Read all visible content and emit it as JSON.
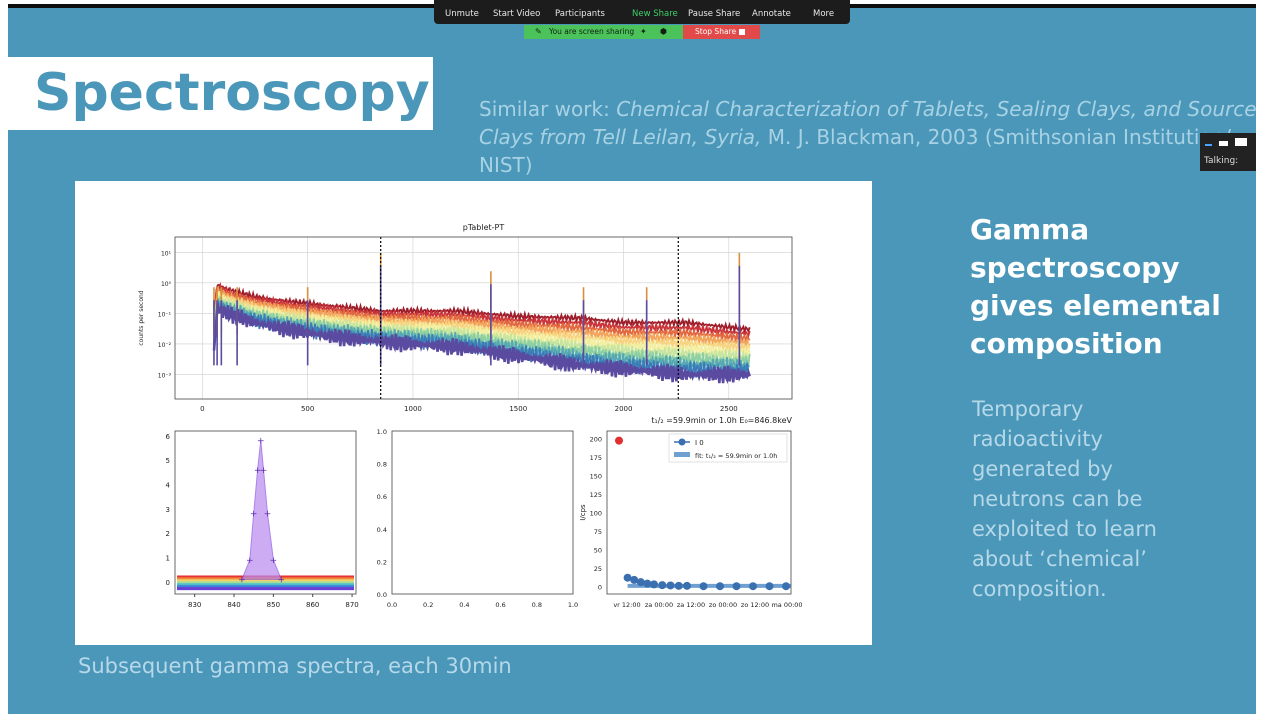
{
  "zoom_toolbar": {
    "items": [
      "Unmute",
      "Start Video",
      "Participants",
      "New Share",
      "Pause Share",
      "Annotate",
      "More"
    ],
    "sharing_label": "You are screen sharing",
    "stop_label": "Stop Share"
  },
  "talking_panel": {
    "label": "Talking:"
  },
  "slide": {
    "title": "Spectroscopy",
    "similar_prefix": "Similar work: ",
    "similar_italic": "Chemical Characterization of Tablets, Sealing Clays, and Source Clays from Tell Leilan, Syria,",
    "similar_suffix": " M. J. Blackman, 2003 (Smithsonian Institution/ NIST)",
    "heading": "Gamma spectroscopy gives elemental composition",
    "body": "Temporary radioactivity generated by neutrons can be exploited to learn about ‘chemical’ composition.",
    "caption": "Subsequent gamma spectra, each 30min"
  },
  "colors": {
    "slide_bg": "#4a97b9",
    "title_color": "#4a97b9",
    "share_green": "#4bc35a",
    "share_red": "#e24a4a",
    "spectrum_top": "#9e1d2a",
    "spectrum_bottom": "#5a4aa0"
  },
  "chart_data": [
    {
      "type": "line",
      "title": "pTablet-PT",
      "ylabel": "counts per second",
      "ylog": true,
      "xlim": [
        -130,
        2800
      ],
      "ylim_log10": [
        -3.8,
        1.5
      ],
      "x_ticks": [
        "0",
        "500",
        "1000",
        "1500",
        "2000",
        "2500"
      ],
      "y_ticks": [
        "10¹",
        "10⁰",
        "10⁻¹",
        "10⁻²",
        "10⁻³"
      ],
      "vlines": [
        846.8,
        2260
      ],
      "annotation": "t₁/₂ =59.9min or 1.0h  E₀=846.8keV",
      "peaks_keV": [
        55,
        70,
        90,
        165,
        500,
        846.8,
        1370,
        1810,
        2110,
        2550
      ],
      "series": [
        {
          "color": "#9e1d2a",
          "x": [
            55,
            70,
            120,
            250,
            400,
            600,
            846.8,
            1000,
            1200,
            1500,
            1800,
            2000,
            2300,
            2600
          ],
          "y": [
            0.08,
            0.9,
            0.6,
            0.35,
            0.25,
            0.18,
            0.12,
            0.12,
            0.12,
            0.08,
            0.07,
            0.05,
            0.05,
            0.03
          ]
        },
        {
          "color": "#5a4aa0",
          "x": [
            55,
            70,
            120,
            250,
            400,
            600,
            846.8,
            1000,
            1200,
            1500,
            1800,
            2000,
            2300,
            2600
          ],
          "y": [
            0.005,
            0.15,
            0.1,
            0.05,
            0.03,
            0.018,
            0.012,
            0.01,
            0.008,
            0.004,
            0.002,
            0.0015,
            0.001,
            0.001
          ]
        }
      ]
    },
    {
      "type": "scatter",
      "x_ticks": [
        "830",
        "840",
        "850",
        "860",
        "870"
      ],
      "y_ticks": [
        "0",
        "1",
        "2",
        "3",
        "4",
        "5",
        "6"
      ],
      "xlim": [
        825,
        871
      ],
      "ylim": [
        -0.5,
        6.2
      ],
      "x": [
        842,
        844,
        845,
        846,
        846.8,
        847.5,
        848.5,
        850,
        852
      ],
      "y": [
        0.1,
        0.9,
        2.8,
        4.6,
        5.8,
        4.6,
        2.8,
        0.9,
        0.1
      ]
    },
    {
      "type": "line",
      "x_ticks": [
        "0.0",
        "0.2",
        "0.4",
        "0.6",
        "0.8",
        "1.0"
      ],
      "y_ticks": [
        "0.0",
        "0.2",
        "0.4",
        "0.6",
        "0.8",
        "1.0"
      ],
      "xlim": [
        0,
        1
      ],
      "ylim": [
        0,
        1
      ]
    },
    {
      "type": "scatter",
      "ylabel": "I/cps",
      "x_ticks": [
        "vr 12:00",
        "za 00:00",
        "za 12:00",
        "zo 00:00",
        "zo 12:00",
        "ma 00:00"
      ],
      "y_ticks": [
        "0",
        "25",
        "50",
        "75",
        "100",
        "125",
        "150",
        "175",
        "200"
      ],
      "ylim": [
        -10,
        210
      ],
      "legend": [
        "I 0",
        "fit: t₁/₂ = 59.9min or 1.0h"
      ],
      "series": [
        {
          "name": "I 0",
          "x": [
            0.4,
            0.8,
            1.2,
            1.6,
            2.0,
            2.5,
            3.0,
            3.5,
            4.0,
            5,
            6,
            7,
            8,
            9,
            10
          ],
          "y": [
            12,
            9,
            6,
            4,
            3,
            2,
            1.5,
            1,
            1,
            0.5,
            0.5,
            0.5,
            0.5,
            0.5,
            0.5
          ]
        }
      ],
      "outlier": {
        "x": 0,
        "y": 197
      }
    }
  ]
}
